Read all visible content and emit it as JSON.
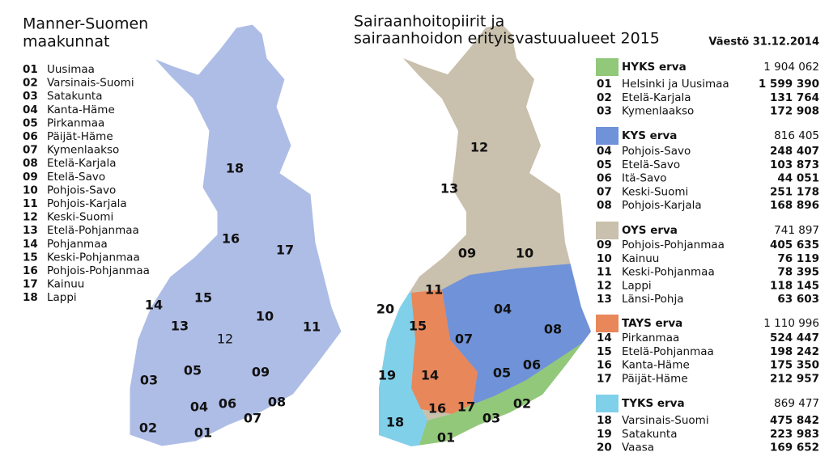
{
  "left": {
    "title_lines": [
      "Manner-Suomen",
      "maakunnat"
    ],
    "regions": [
      {
        "code": "01",
        "name": "Uusimaa"
      },
      {
        "code": "02",
        "name": "Varsinais-Suomi"
      },
      {
        "code": "03",
        "name": "Satakunta"
      },
      {
        "code": "04",
        "name": "Kanta-Häme"
      },
      {
        "code": "05",
        "name": "Pirkanmaa"
      },
      {
        "code": "06",
        "name": "Päijät-Häme"
      },
      {
        "code": "07",
        "name": "Kymenlaakso"
      },
      {
        "code": "08",
        "name": "Etelä-Karjala"
      },
      {
        "code": "09",
        "name": "Etelä-Savo"
      },
      {
        "code": "10",
        "name": "Pohjois-Savo"
      },
      {
        "code": "11",
        "name": "Pohjois-Karjala"
      },
      {
        "code": "12",
        "name": "Keski-Suomi"
      },
      {
        "code": "13",
        "name": "Etelä-Pohjanmaa"
      },
      {
        "code": "14",
        "name": "Pohjanmaa"
      },
      {
        "code": "15",
        "name": "Keski-Pohjanmaa"
      },
      {
        "code": "16",
        "name": "Pohjois-Pohjanmaa"
      },
      {
        "code": "17",
        "name": "Kainuu"
      },
      {
        "code": "18",
        "name": "Lappi"
      }
    ],
    "map_labels": [
      "18",
      "16",
      "17",
      "14",
      "15",
      "13",
      "12",
      "10",
      "11",
      "03",
      "05",
      "09",
      "04",
      "06",
      "08",
      "07",
      "02",
      "01"
    ]
  },
  "right": {
    "title_lines": [
      "Sairaanhoitopiirit ja",
      "sairaanhoidon erityisvastuualueet 2015"
    ],
    "date_label": "Väestö 31.12.2014",
    "ervas": [
      {
        "name": "HYKS erva",
        "total": "1 904 062",
        "color": "#92c87a",
        "districts": [
          {
            "code": "01",
            "name": "Helsinki ja Uusimaa",
            "population": "1 599 390"
          },
          {
            "code": "02",
            "name": "Etelä-Karjala",
            "population": "131 764"
          },
          {
            "code": "03",
            "name": "Kymenlaakso",
            "population": "172 908"
          }
        ]
      },
      {
        "name": "KYS erva",
        "total": "816 405",
        "color": "#6f92d8",
        "districts": [
          {
            "code": "04",
            "name": "Pohjois-Savo",
            "population": "248 407"
          },
          {
            "code": "05",
            "name": "Etelä-Savo",
            "population": "103 873"
          },
          {
            "code": "06",
            "name": "Itä-Savo",
            "population": "44 051"
          },
          {
            "code": "07",
            "name": "Keski-Suomi",
            "population": "251 178"
          },
          {
            "code": "08",
            "name": "Pohjois-Karjala",
            "population": "168 896"
          }
        ]
      },
      {
        "name": "OYS erva",
        "total": "741 897",
        "color": "#c9c0ad",
        "districts": [
          {
            "code": "09",
            "name": "Pohjois-Pohjanmaa",
            "population": "405 635"
          },
          {
            "code": "10",
            "name": "Kainuu",
            "population": "76 119"
          },
          {
            "code": "11",
            "name": "Keski-Pohjanmaa",
            "population": "78 395"
          },
          {
            "code": "12",
            "name": "Lappi",
            "population": "118 145"
          },
          {
            "code": "13",
            "name": "Länsi-Pohja",
            "population": "63 603"
          }
        ]
      },
      {
        "name": "TAYS erva",
        "total": "1 110 996",
        "color": "#e8875a",
        "districts": [
          {
            "code": "14",
            "name": "Pirkanmaa",
            "population": "524 447"
          },
          {
            "code": "15",
            "name": "Etelä-Pohjanmaa",
            "population": "198 242"
          },
          {
            "code": "16",
            "name": "Kanta-Häme",
            "population": "175 350"
          },
          {
            "code": "17",
            "name": "Päijät-Häme",
            "population": "212 957"
          }
        ]
      },
      {
        "name": "TYKS erva",
        "total": "869 477",
        "color": "#80d0ea",
        "districts": [
          {
            "code": "18",
            "name": "Varsinais-Suomi",
            "population": "475 842"
          },
          {
            "code": "19",
            "name": "Satakunta",
            "population": "223 983"
          },
          {
            "code": "20",
            "name": "Vaasa",
            "population": "169 652"
          }
        ]
      }
    ],
    "map_labels": [
      "12",
      "13",
      "09",
      "10",
      "11",
      "20",
      "15",
      "04",
      "08",
      "07",
      "19",
      "14",
      "05",
      "06",
      "16",
      "17",
      "03",
      "02",
      "18",
      "01"
    ]
  }
}
